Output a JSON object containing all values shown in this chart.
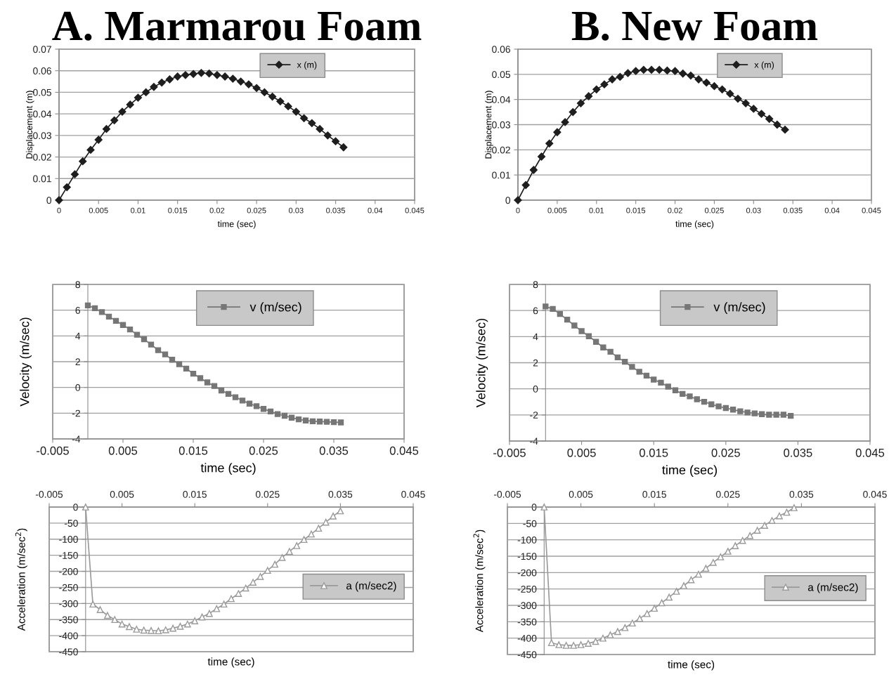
{
  "chart_data": [
    {
      "type": "line",
      "title": "A. Marmarou Foam",
      "xlabel": "time (sec)",
      "ylabel": "Displacement (m)",
      "xlim": [
        0,
        0.045
      ],
      "xticks": [
        0,
        0.005,
        0.01,
        0.015,
        0.02,
        0.025,
        0.03,
        0.035,
        0.04,
        0.045
      ],
      "ylim": [
        0,
        0.07
      ],
      "yticks": [
        0,
        0.01,
        0.02,
        0.03,
        0.04,
        0.05,
        0.06,
        0.07
      ],
      "grid": "y",
      "legend": "top right",
      "marker": "diamond",
      "line_style": "solid",
      "x": [
        0,
        0.001,
        0.002,
        0.003,
        0.004,
        0.005,
        0.006,
        0.007,
        0.008,
        0.009,
        0.01,
        0.011,
        0.012,
        0.013,
        0.014,
        0.015,
        0.016,
        0.017,
        0.018,
        0.019,
        0.02,
        0.021,
        0.022,
        0.023,
        0.024,
        0.025,
        0.026,
        0.027,
        0.028,
        0.029,
        0.03,
        0.031,
        0.032,
        0.033,
        0.034,
        0.035,
        0.036
      ],
      "series": [
        {
          "name": "x (m)",
          "color": "#1e1e1e",
          "values": [
            0,
            0.006,
            0.012,
            0.018,
            0.0233,
            0.028,
            0.033,
            0.037,
            0.041,
            0.0443,
            0.0475,
            0.05,
            0.0525,
            0.0545,
            0.056,
            0.0573,
            0.058,
            0.0585,
            0.059,
            0.0587,
            0.058,
            0.0573,
            0.0563,
            0.055,
            0.0537,
            0.052,
            0.05,
            0.048,
            0.0458,
            0.0435,
            0.041,
            0.038,
            0.0357,
            0.033,
            0.03,
            0.0273,
            0.0245
          ]
        }
      ]
    },
    {
      "type": "line",
      "title": "B. New Foam",
      "xlabel": "time (sec)",
      "ylabel": "Displacement (m)",
      "xlim": [
        0,
        0.045
      ],
      "xticks": [
        0,
        0.005,
        0.01,
        0.015,
        0.02,
        0.025,
        0.03,
        0.035,
        0.04,
        0.045
      ],
      "ylim": [
        0,
        0.06
      ],
      "yticks": [
        0,
        0.01,
        0.02,
        0.03,
        0.04,
        0.05,
        0.06
      ],
      "grid": "y",
      "legend": "top right",
      "marker": "diamond",
      "line_style": "solid",
      "x": [
        0,
        0.001,
        0.002,
        0.003,
        0.004,
        0.005,
        0.006,
        0.007,
        0.008,
        0.009,
        0.01,
        0.011,
        0.012,
        0.013,
        0.014,
        0.015,
        0.016,
        0.017,
        0.018,
        0.019,
        0.02,
        0.021,
        0.022,
        0.023,
        0.024,
        0.025,
        0.026,
        0.027,
        0.028,
        0.029,
        0.03,
        0.031,
        0.032,
        0.033,
        0.034
      ],
      "series": [
        {
          "name": "x (m)",
          "color": "#1e1e1e",
          "values": [
            0,
            0.006,
            0.012,
            0.0173,
            0.0225,
            0.027,
            0.031,
            0.035,
            0.0385,
            0.0413,
            0.044,
            0.046,
            0.048,
            0.049,
            0.0505,
            0.0513,
            0.0518,
            0.0518,
            0.0518,
            0.0515,
            0.0513,
            0.0503,
            0.0495,
            0.048,
            0.0467,
            0.0453,
            0.044,
            0.0423,
            0.0403,
            0.0385,
            0.0363,
            0.0343,
            0.0323,
            0.03,
            0.028
          ]
        }
      ]
    },
    {
      "type": "line",
      "xlabel": "time (sec)",
      "ylabel": "Velocity (m/sec)",
      "xlim": [
        -0.005,
        0.045
      ],
      "xticks": [
        -0.005,
        0.005,
        0.015,
        0.025,
        0.035,
        0.045
      ],
      "ylim": [
        -4,
        8
      ],
      "yticks": [
        -4,
        -2,
        0,
        2,
        4,
        6,
        8
      ],
      "grid": "y",
      "legend": "top right",
      "marker": "square",
      "line_style": "solid",
      "x": [
        0,
        0.001,
        0.002,
        0.003,
        0.004,
        0.005,
        0.006,
        0.007,
        0.008,
        0.009,
        0.01,
        0.011,
        0.012,
        0.013,
        0.014,
        0.015,
        0.016,
        0.017,
        0.018,
        0.019,
        0.02,
        0.021,
        0.022,
        0.023,
        0.024,
        0.025,
        0.026,
        0.027,
        0.028,
        0.029,
        0.03,
        0.031,
        0.032,
        0.033,
        0.034,
        0.035,
        0.036
      ],
      "series": [
        {
          "name": "v (m/sec)",
          "color": "#767676",
          "values": [
            6.37,
            6.15,
            5.85,
            5.5,
            5.17,
            4.85,
            4.5,
            4.09,
            3.74,
            3.33,
            2.89,
            2.57,
            2.15,
            1.8,
            1.46,
            1.07,
            0.72,
            0.39,
            0.11,
            -0.24,
            -0.5,
            -0.76,
            -1.02,
            -1.26,
            -1.46,
            -1.67,
            -1.87,
            -2.07,
            -2.2,
            -2.35,
            -2.48,
            -2.57,
            -2.63,
            -2.65,
            -2.67,
            -2.7,
            -2.72
          ]
        }
      ]
    },
    {
      "type": "line",
      "xlabel": "time (sec)",
      "ylabel": "Velocity (m/sec)",
      "xlim": [
        -0.005,
        0.045
      ],
      "xticks": [
        -0.005,
        0.005,
        0.015,
        0.025,
        0.035,
        0.045
      ],
      "ylim": [
        -4,
        8
      ],
      "yticks": [
        -4,
        -2,
        0,
        2,
        4,
        6,
        8
      ],
      "grid": "y",
      "legend": "top right",
      "marker": "square",
      "line_style": "solid",
      "x": [
        0,
        0.001,
        0.002,
        0.003,
        0.004,
        0.005,
        0.006,
        0.007,
        0.008,
        0.009,
        0.01,
        0.011,
        0.012,
        0.013,
        0.014,
        0.015,
        0.016,
        0.017,
        0.018,
        0.019,
        0.02,
        0.021,
        0.022,
        0.023,
        0.024,
        0.025,
        0.026,
        0.027,
        0.028,
        0.029,
        0.03,
        0.031,
        0.032,
        0.033,
        0.034
      ],
      "series": [
        {
          "name": "v (m/sec)",
          "color": "#767676",
          "values": [
            6.31,
            6.12,
            5.73,
            5.3,
            4.85,
            4.42,
            4.03,
            3.6,
            3.17,
            2.84,
            2.41,
            2.07,
            1.68,
            1.31,
            1.01,
            0.71,
            0.47,
            0.17,
            -0.11,
            -0.39,
            -0.58,
            -0.8,
            -0.99,
            -1.19,
            -1.34,
            -1.47,
            -1.59,
            -1.72,
            -1.81,
            -1.88,
            -1.94,
            -1.98,
            -1.98,
            -1.98,
            -2.07
          ]
        }
      ]
    },
    {
      "type": "line",
      "xlabel": "time (sec)",
      "ylabel": "Acceleration (m/sec$^{2}$)",
      "xlim": [
        -0.005,
        0.045
      ],
      "xticks": [
        -0.005,
        0.005,
        0.015,
        0.025,
        0.035,
        0.045
      ],
      "ylim": [
        -450,
        0
      ],
      "yticks": [
        -450,
        -400,
        -350,
        -300,
        -250,
        -200,
        -150,
        -100,
        -50,
        0
      ],
      "grid": "y",
      "legend": "right",
      "marker": "triangle",
      "line_style": "solid",
      "x": [
        0,
        0.001,
        0.002,
        0.003,
        0.004,
        0.005,
        0.006,
        0.007,
        0.008,
        0.009,
        0.01,
        0.011,
        0.012,
        0.013,
        0.014,
        0.015,
        0.016,
        0.017,
        0.018,
        0.019,
        0.02,
        0.021,
        0.022,
        0.023,
        0.024,
        0.025,
        0.026,
        0.027,
        0.028,
        0.029,
        0.03,
        0.031,
        0.032,
        0.033,
        0.034,
        0.035
      ],
      "series": [
        {
          "name": "a (m/sec2)",
          "color": "#9a9a9a",
          "values": [
            0,
            -302,
            -319,
            -337,
            -350,
            -364,
            -372,
            -380,
            -383,
            -384,
            -385,
            -382,
            -377,
            -371,
            -364,
            -354,
            -342,
            -331,
            -316,
            -302,
            -285,
            -269,
            -252,
            -234,
            -216,
            -197,
            -178,
            -157,
            -138,
            -120,
            -101,
            -84,
            -66,
            -47,
            -28,
            -12
          ]
        }
      ]
    },
    {
      "type": "line",
      "xlabel": "time (sec)",
      "ylabel": "Acceleration (m/sec$^{2}$)",
      "xlim": [
        -0.005,
        0.045
      ],
      "xticks": [
        -0.005,
        0.005,
        0.015,
        0.025,
        0.035,
        0.045
      ],
      "ylim": [
        -450,
        0
      ],
      "yticks": [
        -450,
        -400,
        -350,
        -300,
        -250,
        -200,
        -150,
        -100,
        -50,
        0
      ],
      "grid": "y",
      "legend": "right",
      "marker": "triangle",
      "line_style": "solid",
      "x": [
        0,
        0.001,
        0.002,
        0.003,
        0.004,
        0.005,
        0.006,
        0.007,
        0.008,
        0.009,
        0.01,
        0.011,
        0.012,
        0.013,
        0.014,
        0.015,
        0.016,
        0.017,
        0.018,
        0.019,
        0.02,
        0.021,
        0.022,
        0.023,
        0.024,
        0.025,
        0.026,
        0.027,
        0.028,
        0.029,
        0.03,
        0.031,
        0.032,
        0.033,
        0.034
      ],
      "series": [
        {
          "name": "a (m/sec2)",
          "color": "#9a9a9a",
          "values": [
            0,
            -414,
            -420,
            -422,
            -422,
            -420,
            -416,
            -410,
            -400,
            -390,
            -380,
            -368,
            -354,
            -340,
            -325,
            -309,
            -292,
            -275,
            -257,
            -240,
            -222,
            -205,
            -187,
            -169,
            -152,
            -135,
            -118,
            -102,
            -87,
            -71,
            -56,
            -41,
            -27,
            -16,
            -2
          ]
        }
      ]
    }
  ]
}
